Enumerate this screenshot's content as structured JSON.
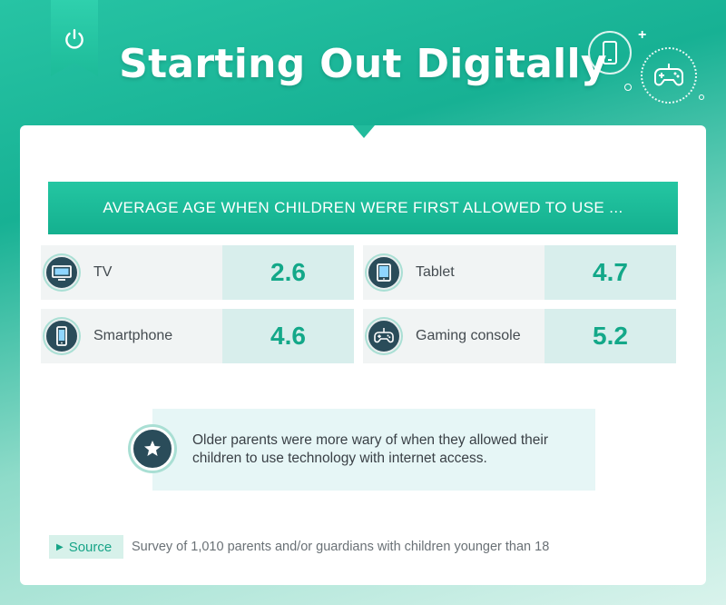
{
  "title": "Starting Out Digitally",
  "banner": "AVERAGE AGE WHEN CHILDREN WERE FIRST ALLOWED TO USE ...",
  "stats": [
    {
      "label": "TV",
      "value": "2.6",
      "icon": "tv-icon"
    },
    {
      "label": "Tablet",
      "value": "4.7",
      "icon": "tablet-icon"
    },
    {
      "label": "Smartphone",
      "value": "4.6",
      "icon": "smartphone-icon"
    },
    {
      "label": "Gaming console",
      "value": "5.2",
      "icon": "gamepad-icon"
    }
  ],
  "note": "Older parents were more wary of when they allowed their children to use technology with internet access.",
  "source": {
    "label": "Source",
    "text": "Survey of 1,010 parents and/or guardians with children younger than 18"
  },
  "colors": {
    "accent": "#1dbb99",
    "value": "#13a889",
    "icon_bg": "#2a4c5a"
  }
}
